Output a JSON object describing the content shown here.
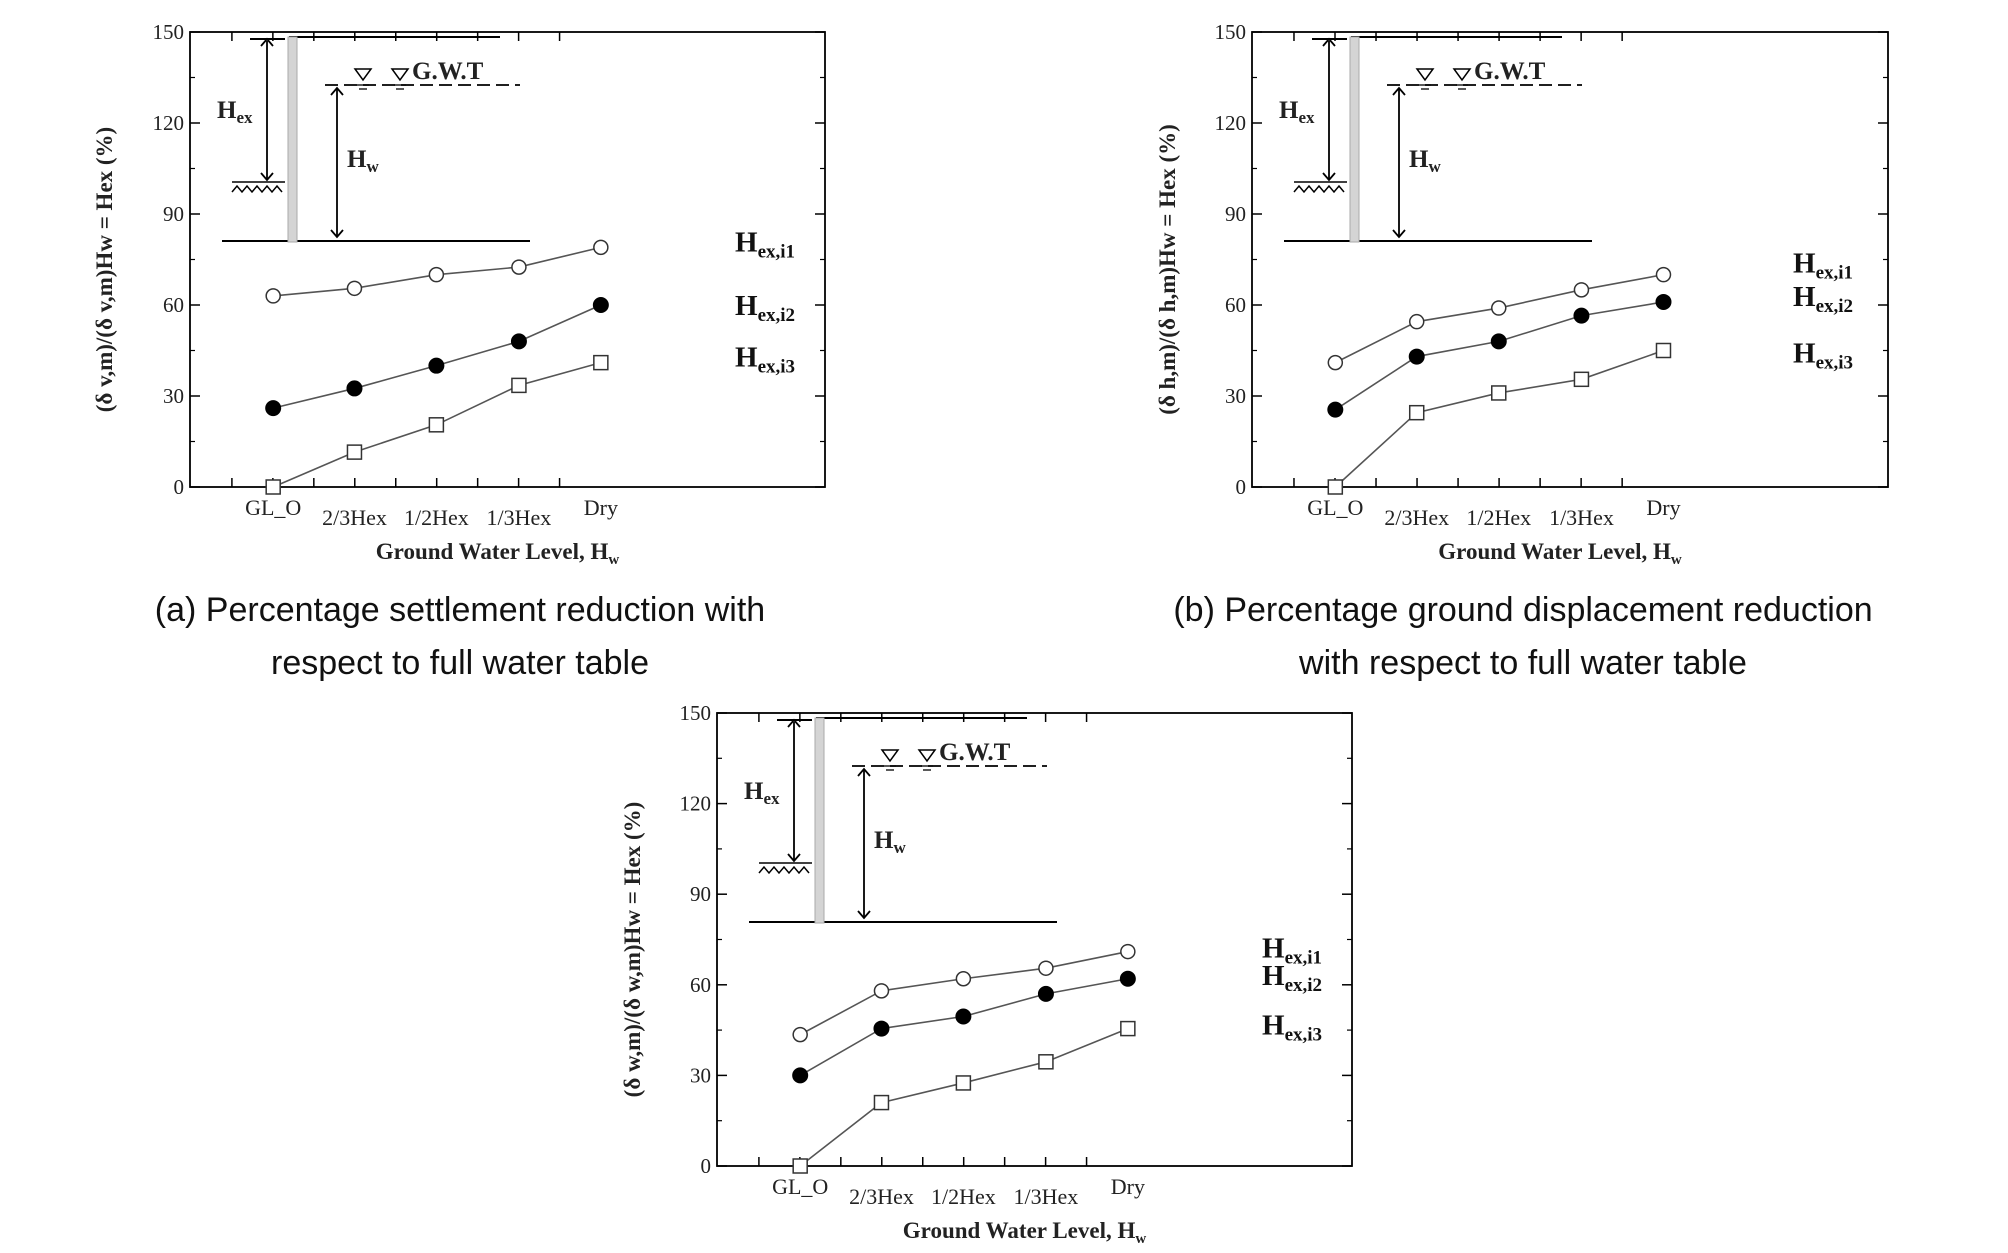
{
  "chart_data": [
    {
      "id": "a",
      "type": "line",
      "categories": [
        "GL_O",
        "2/3Hex",
        "1/2Hex",
        "1/3Hex",
        "Dry"
      ],
      "xlabel": "Ground Water Level, ",
      "xlabel_sub": "w",
      "ylabel": "(δ v,m)/(δ v,m)Hw = Hex (%)",
      "ylim": [
        0,
        150
      ],
      "yticks": [
        0,
        30,
        60,
        90,
        120,
        150
      ],
      "series": [
        {
          "name": "Hex,i1",
          "label_main": "H",
          "label_sub": "ex,i1",
          "marker": "open-circle",
          "values": [
            63,
            65.5,
            70,
            72.5,
            79
          ]
        },
        {
          "name": "Hex,i2",
          "label_main": "H",
          "label_sub": "ex,i2",
          "marker": "filled-circle",
          "values": [
            26,
            32.5,
            40,
            48,
            60
          ]
        },
        {
          "name": "Hex,i3",
          "label_main": "H",
          "label_sub": "ex,i3",
          "marker": "open-square",
          "values": [
            0,
            11.5,
            20.5,
            33.5,
            41
          ]
        }
      ],
      "caption_line1": "(a) Percentage settlement reduction with",
      "caption_line2": "respect to full water table",
      "inset": {
        "gwt_label": "G.W.T",
        "hex_main": "H",
        "hex_sub": "ex",
        "hw_main": "H",
        "hw_sub": "w"
      }
    },
    {
      "id": "b",
      "type": "line",
      "categories": [
        "GL_O",
        "2/3Hex",
        "1/2Hex",
        "1/3Hex",
        "Dry"
      ],
      "xlabel": "Ground Water Level, ",
      "xlabel_sub": "w",
      "ylabel": "(δ h,m)/(δ h,m)Hw = Hex (%)",
      "ylim": [
        0,
        150
      ],
      "yticks": [
        0,
        30,
        60,
        90,
        120,
        150
      ],
      "series": [
        {
          "name": "Hex,i1",
          "label_main": "H",
          "label_sub": "ex,i1",
          "marker": "open-circle",
          "values": [
            41,
            54.5,
            59,
            65,
            70
          ]
        },
        {
          "name": "Hex,i2",
          "label_main": "H",
          "label_sub": "ex,i2",
          "marker": "filled-circle",
          "values": [
            25.5,
            43,
            48,
            56.5,
            61
          ]
        },
        {
          "name": "Hex,i3",
          "label_main": "H",
          "label_sub": "ex,i3",
          "marker": "open-square",
          "values": [
            0,
            24.5,
            31,
            35.5,
            45
          ]
        }
      ],
      "caption_line1": "(b) Percentage ground displacement reduction",
      "caption_line2": "with respect to full water table",
      "inset": {
        "gwt_label": "G.W.T",
        "hex_main": "H",
        "hex_sub": "ex",
        "hw_main": "H",
        "hw_sub": "w"
      }
    },
    {
      "id": "c",
      "type": "line",
      "categories": [
        "GL_O",
        "2/3Hex",
        "1/2Hex",
        "1/3Hex",
        "Dry"
      ],
      "xlabel": "Ground Water Level, ",
      "xlabel_sub": "w",
      "ylabel": "(δ w,m)/(δ w,m)Hw = Hex (%)",
      "ylim": [
        0,
        150
      ],
      "yticks": [
        0,
        30,
        60,
        90,
        120,
        150
      ],
      "series": [
        {
          "name": "Hex,i1",
          "label_main": "H",
          "label_sub": "ex,i1",
          "marker": "open-circle",
          "values": [
            43.5,
            58,
            62,
            65.5,
            71
          ]
        },
        {
          "name": "Hex,i2",
          "label_main": "H",
          "label_sub": "ex,i2",
          "marker": "filled-circle",
          "values": [
            30,
            45.5,
            49.5,
            57,
            62
          ]
        },
        {
          "name": "Hex,i3",
          "label_main": "H",
          "label_sub": "ex,i3",
          "marker": "open-square",
          "values": [
            0,
            21,
            27.5,
            34.5,
            45.5
          ]
        }
      ],
      "inset": {
        "gwt_label": "G.W.T",
        "hex_main": "H",
        "hex_sub": "ex",
        "hw_main": "H",
        "hw_sub": "w"
      }
    }
  ]
}
